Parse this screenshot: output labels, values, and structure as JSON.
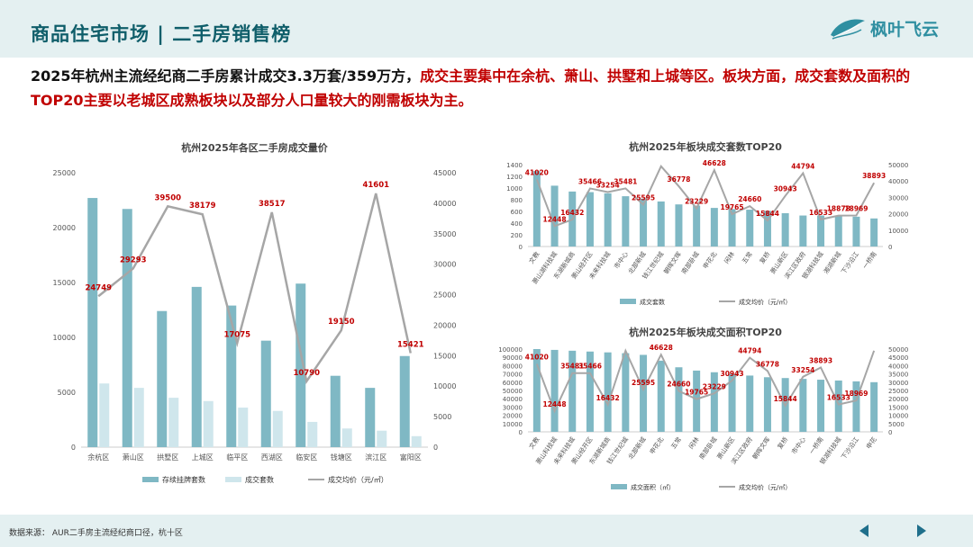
{
  "header": {
    "title": "商品住宅市场 | 二手房销售榜",
    "logo_text": "枫叶飞云"
  },
  "summary": {
    "part1": "2025年杭州主流经纪商二手房累计成交3.3万套/359万方，",
    "part2": "成交主要集中在余杭、萧山、拱墅和上城等区。板块方面，成交套数及面积的TOP20主要以老城区成熟板块以及部分人口量较大的刚需板块为主。"
  },
  "footer": {
    "source": "数据来源： AUR二手房主流经纪商口径，杭十区"
  },
  "colors": {
    "bar_main": "#7fb8c4",
    "bar_light": "#cfe6ec",
    "line": "#a6a6a6",
    "label_red": "#c00000",
    "title_teal": "#0f5e6a",
    "nav": "#1f6f8b"
  },
  "chart_data": [
    {
      "type": "bar",
      "title": "杭州2025年各区二手房成交量价",
      "categories": [
        "余杭区",
        "萧山区",
        "拱墅区",
        "上城区",
        "临平区",
        "西湖区",
        "临安区",
        "钱塘区",
        "滨江区",
        "富阳区"
      ],
      "series": [
        {
          "name": "存续挂牌套数",
          "axis": "left",
          "kind": "bar",
          "values": [
            22700,
            21700,
            12400,
            14600,
            12900,
            9700,
            14900,
            6500,
            5400,
            8300
          ]
        },
        {
          "name": "成交套数",
          "axis": "left",
          "kind": "bar",
          "values": [
            5800,
            5400,
            4500,
            4200,
            3600,
            3300,
            2300,
            1700,
            1500,
            1000
          ]
        },
        {
          "name": "成交均价（元/㎡）",
          "axis": "right",
          "kind": "line",
          "values": [
            24749,
            29293,
            39500,
            38179,
            17075,
            38517,
            10790,
            19150,
            41601,
            15421
          ]
        }
      ],
      "ylim_left": [
        0,
        25000
      ],
      "yticks_left": [
        0,
        5000,
        10000,
        15000,
        20000,
        25000
      ],
      "ylim_right": [
        0,
        45000
      ],
      "yticks_right": [
        0,
        5000,
        10000,
        15000,
        20000,
        25000,
        30000,
        35000,
        40000,
        45000
      ],
      "legend": [
        "存续挂牌套数",
        "成交套数",
        "成交均价（元/㎡）"
      ]
    },
    {
      "type": "bar",
      "title": "杭州2025年板块成交套数TOP20",
      "categories": [
        "文教",
        "萧山湖科技城",
        "东湖新城商",
        "萧山经开区",
        "未来科技城",
        "市中心",
        "北部新城",
        "钱江世纪城",
        "朝晖文晖",
        "南部卧城",
        "申花北",
        "闲林",
        "五常",
        "复桥",
        "萧山新区",
        "滨江区政府",
        "银湖科技城",
        "湘湖新城",
        "下沙沿江",
        "一桥南"
      ],
      "series": [
        {
          "name": "成交套数",
          "axis": "left",
          "kind": "bar",
          "values": [
            1290,
            1040,
            940,
            930,
            910,
            860,
            820,
            770,
            720,
            700,
            660,
            640,
            630,
            610,
            570,
            530,
            530,
            520,
            510,
            480
          ]
        },
        {
          "name": "成交均价（元/㎡）",
          "axis": "right",
          "kind": "line",
          "values": [
            41020,
            12448,
            16432,
            35466,
            33254,
            35481,
            25595,
            49000,
            36778,
            23229,
            46628,
            19765,
            24660,
            15844,
            30943,
            44794,
            16533,
            18878,
            18969,
            38893
          ]
        }
      ],
      "data_labels": [
        "41020",
        "12448",
        "16432",
        "35466",
        "33254",
        "35481",
        "25595",
        "",
        "36778",
        "23229",
        "46628",
        "19765",
        "24660",
        "15844",
        "30943",
        "44794",
        "16533",
        "18878",
        "18969",
        "38893"
      ],
      "ylim_left": [
        0,
        1400
      ],
      "yticks_left": [
        0,
        200,
        400,
        600,
        800,
        1000,
        1200,
        1400
      ],
      "ylim_right": [
        0,
        50000
      ],
      "yticks_right": [
        0,
        10000,
        20000,
        30000,
        40000,
        50000
      ],
      "legend": [
        "成交套数",
        "成交均价（元/㎡）"
      ]
    },
    {
      "type": "bar",
      "title": "杭州2025年板块成交面积TOP20",
      "categories": [
        "文教",
        "萧山科技城",
        "未来科技城",
        "萧山经开区",
        "东湖新城商",
        "钱江世纪城",
        "北部新城",
        "申花北",
        "五常",
        "闲林",
        "南部卧城",
        "萧山新区",
        "滨江区政府",
        "朝晖文晖",
        "复桥",
        "市中心",
        "一桥南",
        "银湖科技城",
        "下沙沿江",
        "申花"
      ],
      "series": [
        {
          "name": "成交面积（㎡）",
          "axis": "left",
          "kind": "bar",
          "values": [
            100000,
            99000,
            98000,
            97000,
            96000,
            95000,
            93000,
            86000,
            78000,
            74000,
            72000,
            70000,
            68000,
            66000,
            65000,
            64000,
            63000,
            62000,
            61000,
            60000
          ]
        },
        {
          "name": "成交均价（元/㎡）",
          "axis": "right",
          "kind": "line",
          "values": [
            41020,
            12448,
            35481,
            35466,
            16432,
            49000,
            25595,
            46628,
            24660,
            19765,
            23229,
            30943,
            44794,
            36778,
            15844,
            33254,
            38893,
            16533,
            18969,
            49000
          ]
        }
      ],
      "data_labels": [
        "41020",
        "12448",
        "35481",
        "35466",
        "16432",
        "",
        "25595",
        "46628",
        "24660",
        "19765",
        "23229",
        "30943",
        "44794",
        "36778",
        "15844",
        "33254",
        "38893",
        "16533",
        "18969",
        ""
      ],
      "ylim_left": [
        0,
        100000
      ],
      "yticks_left": [
        0,
        10000,
        20000,
        30000,
        40000,
        50000,
        60000,
        70000,
        80000,
        90000,
        100000
      ],
      "ylim_right": [
        0,
        50000
      ],
      "yticks_right": [
        0,
        5000,
        10000,
        15000,
        20000,
        25000,
        30000,
        35000,
        40000,
        45000,
        50000
      ],
      "legend": [
        "成交面积（㎡）",
        "成交均价（元/㎡）"
      ]
    }
  ]
}
